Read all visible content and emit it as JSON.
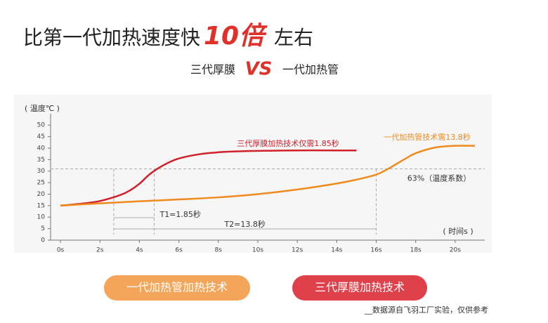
{
  "chart_data": {
    "type": "line",
    "title": "比第一代加热速度快",
    "title_highlight": "10倍",
    "title_suffix": "左右",
    "subtitle_left": "三代厚膜",
    "subtitle_vs": "VS",
    "subtitle_right": "一代加热管",
    "y_label": "( 温度℃ )",
    "x_label": "( 时间s )",
    "xlim": [
      -0.5,
      21.5
    ],
    "ylim": [
      0,
      52.5
    ],
    "yticks": [
      0,
      5,
      10,
      15,
      20,
      25,
      30,
      35,
      40,
      45,
      50
    ],
    "xticks": [
      {
        "value": 0,
        "label": "0s"
      },
      {
        "value": 2,
        "label": "2s"
      },
      {
        "value": 4,
        "label": "4s"
      },
      {
        "value": 6,
        "label": "6s"
      },
      {
        "value": 8,
        "label": "8s"
      },
      {
        "value": 10,
        "label": "10s"
      },
      {
        "value": 12,
        "label": "12s"
      },
      {
        "value": 14,
        "label": "14s"
      },
      {
        "value": 16,
        "label": "16s"
      },
      {
        "value": 18,
        "label": "18s"
      },
      {
        "value": 20,
        "label": "20s"
      }
    ],
    "series": [
      {
        "name": "三代厚膜加热技术仅需1.85秒",
        "color": "#d0202a",
        "x": [
          0,
          1,
          2,
          3,
          3.5,
          4,
          4.5,
          5,
          5.5,
          6,
          7,
          8,
          9,
          10,
          12,
          14,
          15
        ],
        "values": [
          15,
          15.8,
          17,
          19.5,
          21.5,
          24.5,
          28.5,
          31.5,
          33.8,
          35.5,
          37.3,
          38.2,
          38.6,
          38.8,
          39,
          39,
          39
        ]
      },
      {
        "name": "一代加热管技术需13.8秒",
        "color": "#f08a1c",
        "x": [
          0,
          2,
          4,
          6,
          8,
          10,
          12,
          14,
          15,
          16,
          16.5,
          17,
          17.5,
          18,
          19,
          20,
          21
        ],
        "values": [
          15,
          16,
          16.9,
          17.7,
          18.6,
          20,
          22,
          24.6,
          26.3,
          28.5,
          30.5,
          33,
          35.5,
          37.8,
          40.3,
          41,
          41
        ]
      }
    ],
    "hline": 31,
    "hline_label": "63%（温度系数）",
    "vlines": [
      2.7,
      4.75,
      16
    ],
    "t1_label": "T1=1.85秒",
    "t2_label": "T2=13.8秒",
    "button_left": "一代加热管加热技术",
    "button_right": "三代厚膜加热技术",
    "footnote": "__数据源自飞羽工厂实验，仅供参考"
  }
}
